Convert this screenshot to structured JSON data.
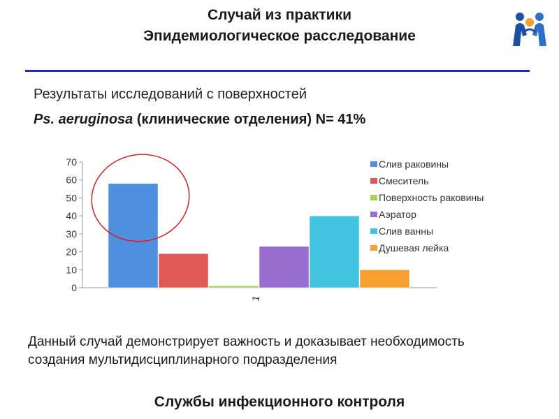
{
  "header": {
    "title_line1": "Случай из практики",
    "title_line2": "Эпидемиологическое расследование"
  },
  "subtitle": {
    "line1": "Результаты исследований с поверхностей",
    "organism": "Ps. aeruginosa",
    "rest": "(клинические отделения)",
    "n_label": "N= 41%"
  },
  "chart_data": {
    "type": "bar",
    "categories": [
      "1"
    ],
    "ylim": [
      0,
      70
    ],
    "yticks": [
      0,
      10,
      20,
      30,
      40,
      50,
      60,
      70
    ],
    "grid": false,
    "legend_position": "right",
    "series": [
      {
        "name": "Слив раковины",
        "values": [
          58
        ],
        "color": "#4f8fe0"
      },
      {
        "name": "Смеситель",
        "values": [
          19
        ],
        "color": "#e05a55"
      },
      {
        "name": "Поверхность раковины",
        "values": [
          1
        ],
        "color": "#a6d05a"
      },
      {
        "name": "Аэратор",
        "values": [
          23
        ],
        "color": "#9a6dd0"
      },
      {
        "name": "Слив ванны",
        "values": [
          40
        ],
        "color": "#40c4e0"
      },
      {
        "name": "Душевая лейка",
        "values": [
          10
        ],
        "color": "#f5a030"
      }
    ],
    "annotation": {
      "type": "ellipse-highlight",
      "target_series": "Слив раковины",
      "color": "#d92020"
    }
  },
  "note": {
    "text": "Данный случай демонстрирует важность и  доказывает необходимость создания мультидисциплинарного подразделения"
  },
  "footer": {
    "text": "Службы инфекционного контроля"
  },
  "logo": {
    "icon": "two-people-logo-icon"
  }
}
